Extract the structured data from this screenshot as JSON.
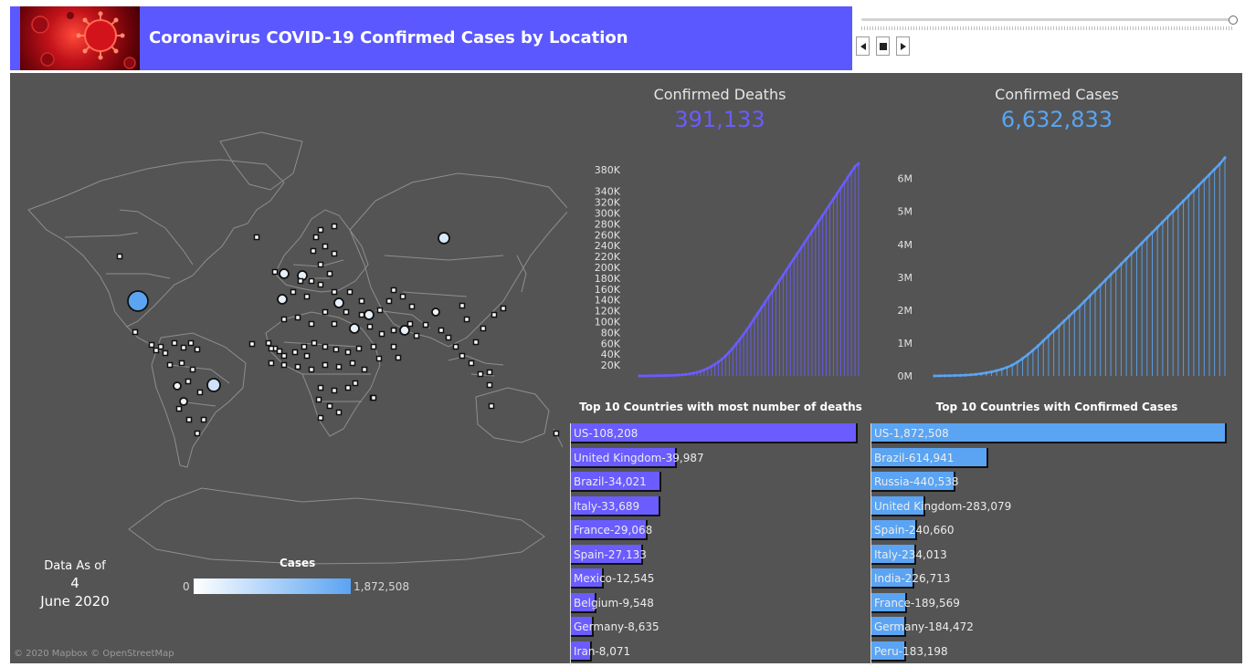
{
  "header": {
    "title": "Coronavirus COVID-19 Confirmed Cases by Location"
  },
  "player": {
    "prev_icon": "triangle-left",
    "stop_icon": "square",
    "next_icon": "triangle-right"
  },
  "kpis": {
    "deaths_label": "Confirmed Deaths",
    "deaths_value": "391,133",
    "cases_label": "Confirmed Cases",
    "cases_value": "6,632,833"
  },
  "colors": {
    "deaths": "#6a5cff",
    "cases": "#5aa4f3",
    "header": "#5b58ff",
    "background": "#545454"
  },
  "map": {
    "legend_title": "Cases",
    "legend_min": "0",
    "legend_max": "1,872,508",
    "date_line1": "Data As of",
    "date_line2": "4",
    "date_line3": "June 2020",
    "attribution": "© 2020 Mapbox  © OpenStreetMap"
  },
  "chart_data": [
    {
      "type": "area",
      "title": "",
      "ylabel": "",
      "ylim": [
        0,
        400000
      ],
      "yticks": [
        20000,
        40000,
        60000,
        80000,
        100000,
        120000,
        140000,
        160000,
        180000,
        200000,
        220000,
        240000,
        260000,
        280000,
        300000,
        320000,
        340000,
        380000
      ],
      "ytick_labels": [
        "20K",
        "40K",
        "60K",
        "80K",
        "100K",
        "120K",
        "140K",
        "160K",
        "180K",
        "200K",
        "220K",
        "240K",
        "260K",
        "280K",
        "300K",
        "320K",
        "340K",
        "380K"
      ],
      "series": [
        {
          "values": [
            0,
            0,
            100,
            200,
            300,
            400,
            500,
            600,
            800,
            1000,
            1300,
            1700,
            2200,
            2900,
            3800,
            5000,
            6500,
            8500,
            11000,
            14000,
            17500,
            21500,
            26000,
            31000,
            37000,
            44000,
            51500,
            59500,
            68000,
            77000,
            86000,
            96000,
            106000,
            116000,
            126000,
            136000,
            146000,
            156000,
            166000,
            176000,
            186000,
            196000,
            206000,
            216000,
            226000,
            236000,
            246000,
            256000,
            266000,
            276000,
            286000,
            296000,
            306000,
            316000,
            326000,
            336000,
            346000,
            356000,
            366000,
            376000,
            386000,
            391133
          ]
        }
      ]
    },
    {
      "type": "area",
      "title": "",
      "ylabel": "",
      "ylim": [
        0,
        6600000
      ],
      "yticks": [
        0,
        1000000,
        2000000,
        3000000,
        4000000,
        5000000,
        6000000
      ],
      "ytick_labels": [
        "0M",
        "1M",
        "2M",
        "3M",
        "4M",
        "5M",
        "6M"
      ],
      "series": [
        {
          "values": [
            0,
            2000,
            5000,
            9000,
            13000,
            18000,
            25000,
            35000,
            50000,
            70000,
            95000,
            125000,
            160000,
            205000,
            260000,
            330000,
            420000,
            530000,
            650000,
            780000,
            920000,
            1070000,
            1220000,
            1370000,
            1520000,
            1670000,
            1820000,
            1970000,
            2120000,
            2280000,
            2440000,
            2600000,
            2760000,
            2920000,
            3080000,
            3240000,
            3400000,
            3560000,
            3720000,
            3880000,
            4040000,
            4200000,
            4360000,
            4520000,
            4680000,
            4840000,
            5000000,
            5160000,
            5320000,
            5480000,
            5640000,
            5800000,
            5960000,
            6120000,
            6280000,
            6440000,
            6632833
          ]
        }
      ]
    },
    {
      "type": "bar",
      "title": "Top 10 Countries with most number of deaths",
      "categories": [
        "US",
        "United Kingdom",
        "Brazil",
        "Italy",
        "France",
        "Spain",
        "Mexico",
        "Belgium",
        "Germany",
        "Iran"
      ],
      "values": [
        108208,
        39987,
        34021,
        33689,
        29068,
        27133,
        12545,
        9548,
        8635,
        8071
      ],
      "labels": [
        "US-108,208",
        "United Kingdom-39,987",
        "Brazil-34,021",
        "Italy-33,689",
        "France-29,068",
        "Spain-27,133",
        "Mexico-12,545",
        "Belgium-9,548",
        "Germany-8,635",
        "Iran-8,071"
      ]
    },
    {
      "type": "bar",
      "title": "Top 10 Countries with Confirmed Cases",
      "categories": [
        "US",
        "Brazil",
        "Russia",
        "United Kingdom",
        "Spain",
        "Italy",
        "India",
        "France",
        "Germany",
        "Peru"
      ],
      "values": [
        1872508,
        614941,
        440538,
        283079,
        240660,
        234013,
        226713,
        189569,
        184472,
        183198
      ],
      "labels": [
        "US-1,872,508",
        "Brazil-614,941",
        "Russia-440,538",
        "United Kingdom-283,079",
        "Spain-240,660",
        "Italy-234,013",
        "India-226,713",
        "France-189,569",
        "Germany-184,472",
        "Peru-183,198"
      ]
    }
  ]
}
